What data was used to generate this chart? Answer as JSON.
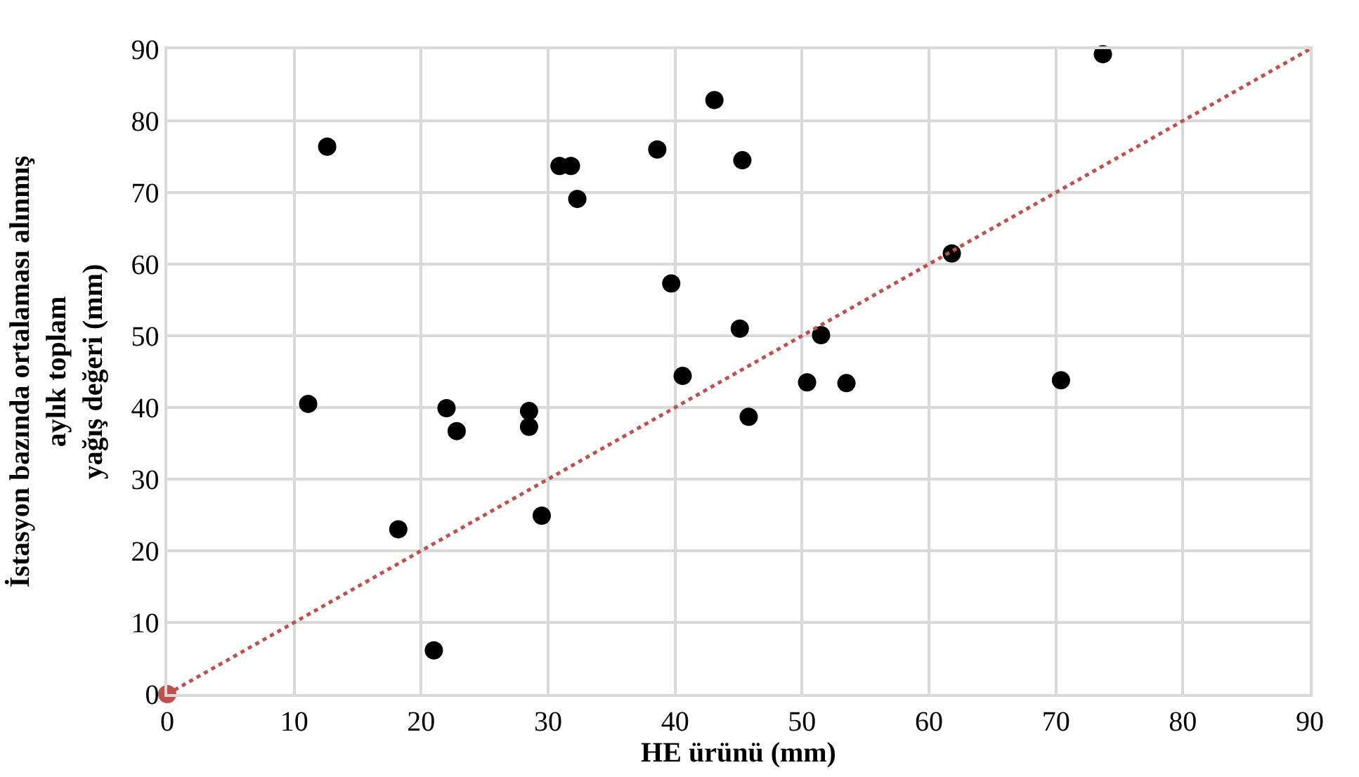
{
  "chart_data": {
    "type": "scatter",
    "xlabel": "HE ürünü (mm)",
    "ylabel": "İstasyon bazında ortalaması alınmış\naylık toplam\nyağış değeri (mm)",
    "series": [
      {
        "color": "#000000",
        "marker": "circle",
        "x": [
          12.6,
          11.1,
          22.0,
          22.8,
          18.2,
          21.0,
          28.5,
          28.5,
          29.5,
          30.9,
          31.8,
          32.3,
          38.6,
          39.7,
          43.1,
          45.3,
          45.1,
          40.6,
          51.5,
          45.8,
          50.4,
          53.5,
          61.8,
          70.4,
          73.7
        ],
        "values": [
          76.4,
          40.5,
          39.9,
          36.7,
          23.0,
          6.1,
          39.5,
          37.3,
          24.9,
          73.7,
          73.7,
          69.1,
          76.0,
          57.3,
          82.9,
          74.5,
          51.0,
          44.4,
          50.1,
          38.7,
          43.5,
          43.4,
          61.5,
          43.8,
          89.3
        ]
      },
      {
        "type": "line",
        "color": "#c0504d",
        "line_style": "dotted",
        "marker": "none",
        "x": [
          0,
          90
        ],
        "values": [
          0,
          90
        ]
      },
      {
        "type": "scatter",
        "color": "#c0504d",
        "marker": "circle",
        "x": [
          0
        ],
        "values": [
          0
        ]
      }
    ],
    "xlim": [
      0,
      90
    ],
    "ylim": [
      0,
      90
    ],
    "xticks": [
      0,
      10,
      20,
      30,
      40,
      50,
      60,
      70,
      80,
      90
    ],
    "yticks": [
      0,
      10,
      20,
      30,
      40,
      50,
      60,
      70,
      80,
      90
    ],
    "grid": true
  }
}
